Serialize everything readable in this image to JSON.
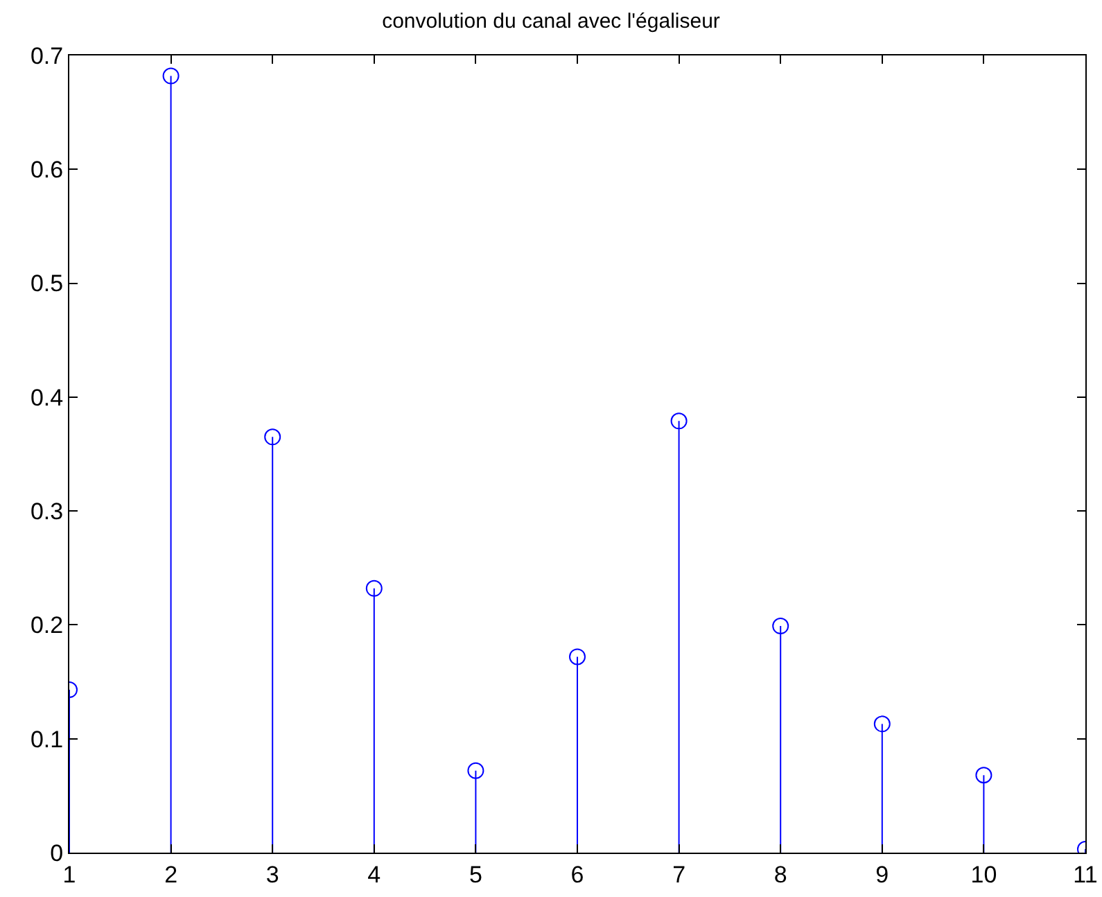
{
  "chart_data": {
    "type": "lollipop",
    "title": "convolution du canal avec l'égaliseur",
    "x": [
      1,
      2,
      3,
      4,
      5,
      6,
      7,
      8,
      9,
      10,
      11
    ],
    "values": [
      0.143,
      0.682,
      0.365,
      0.232,
      0.072,
      0.172,
      0.379,
      0.199,
      0.113,
      0.068,
      0.003
    ],
    "color": "#0000ff",
    "marker": "circle",
    "grid": false,
    "xlim": [
      1,
      11
    ],
    "xticks": [
      1,
      2,
      3,
      4,
      5,
      6,
      7,
      8,
      9,
      10,
      11
    ],
    "ylim": [
      0,
      0.7
    ],
    "yticks": [
      0,
      0.1,
      0.2,
      0.3,
      0.4,
      0.5,
      0.6,
      0.7
    ]
  }
}
